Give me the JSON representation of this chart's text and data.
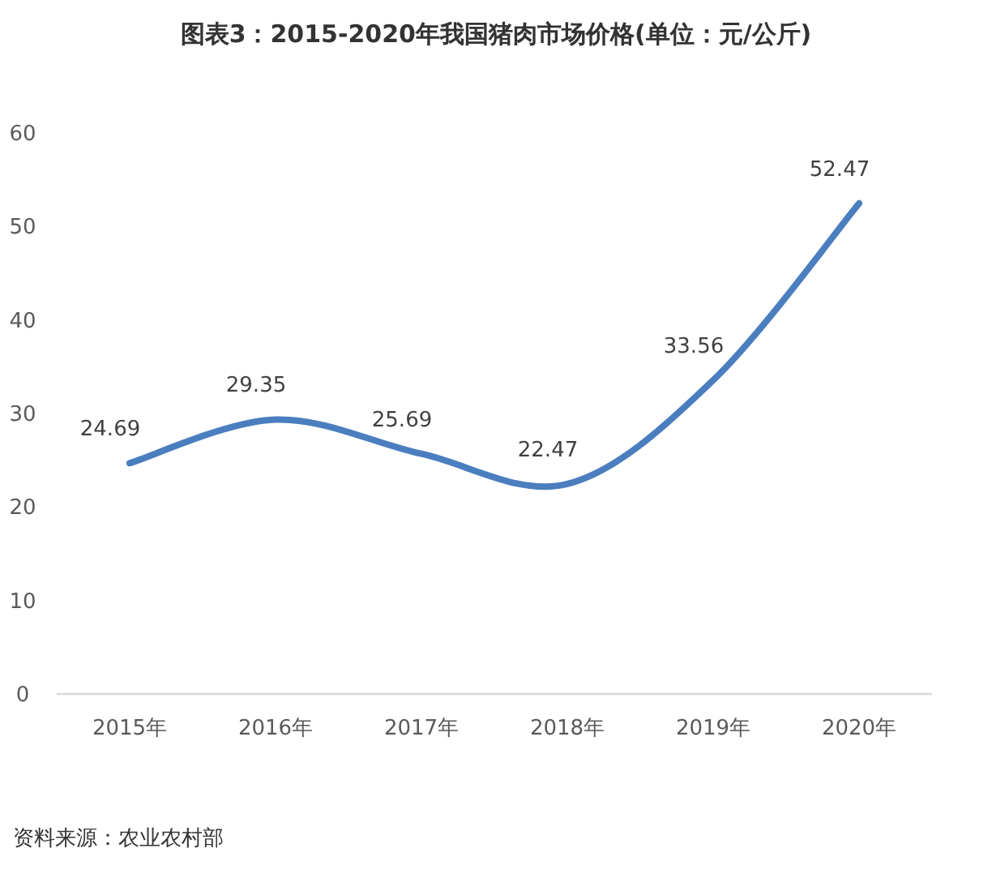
{
  "chart_data": {
    "type": "line",
    "title": "图表3：2015-2020年我国猪肉市场价格(单位：元/公斤)",
    "categories": [
      "2015年",
      "2016年",
      "2017年",
      "2018年",
      "2019年",
      "2020年"
    ],
    "series": [
      {
        "color": "#4a7ebf",
        "values": [
          24.69,
          29.35,
          25.69,
          22.47,
          33.56,
          52.47
        ]
      }
    ],
    "ylim": [
      0,
      60
    ],
    "yticks": [
      0,
      10,
      20,
      30,
      40,
      50,
      60
    ],
    "data_labels": true,
    "marker": "none",
    "line_style": "solid",
    "grid": false,
    "annotations": [
      "资料来源：农业农村部"
    ]
  }
}
